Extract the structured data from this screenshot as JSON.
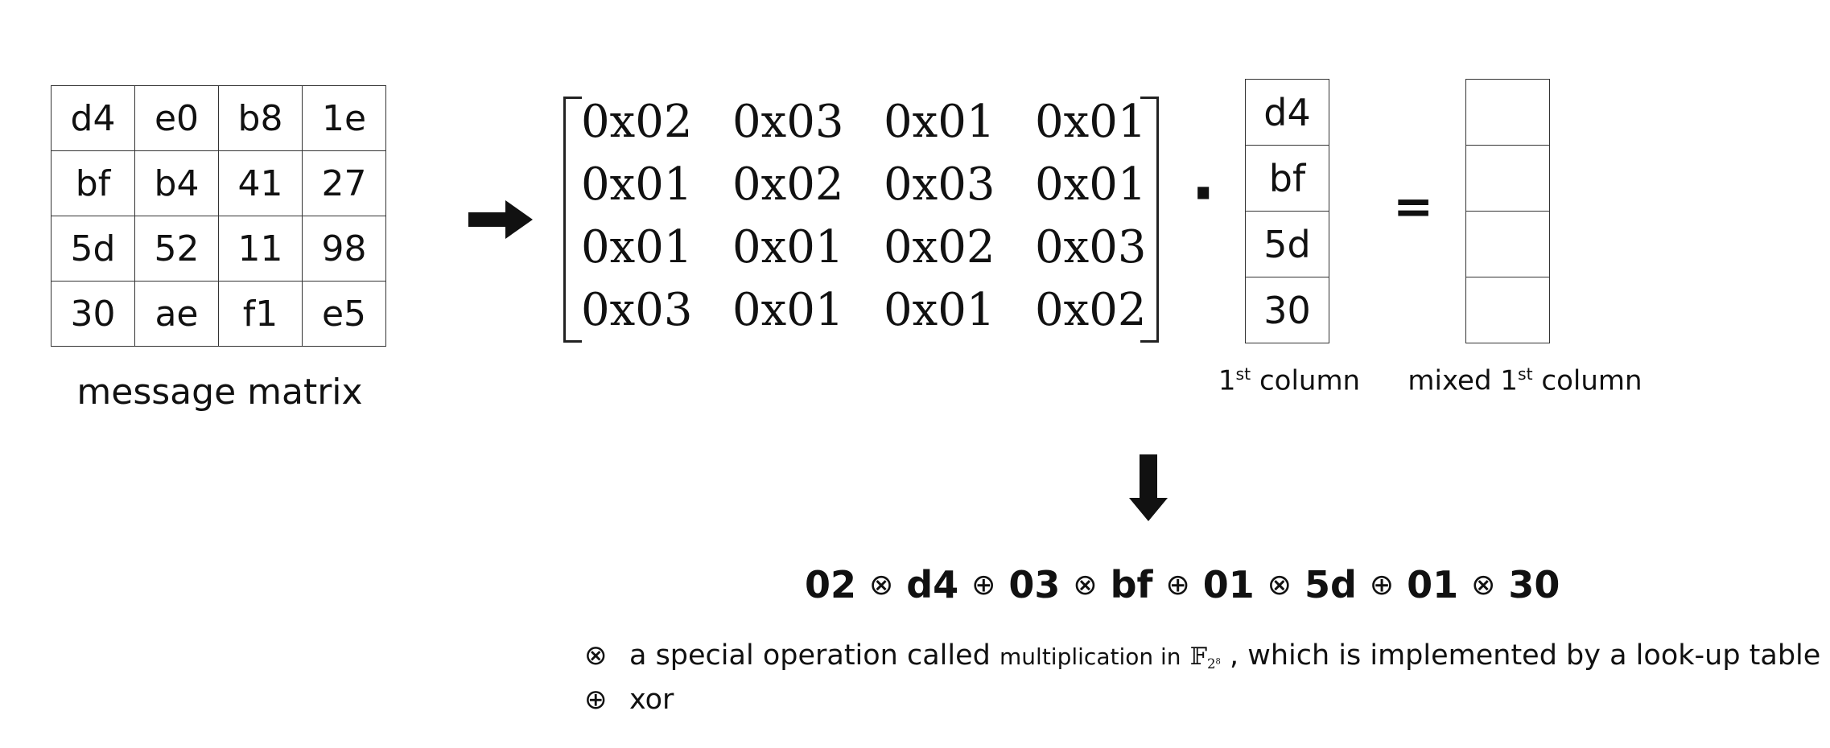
{
  "message_matrix": {
    "rows": [
      [
        "d4",
        "e0",
        "b8",
        "1e"
      ],
      [
        "bf",
        "b4",
        "41",
        "27"
      ],
      [
        "5d",
        "52",
        "11",
        "98"
      ],
      [
        "30",
        "ae",
        "f1",
        "e5"
      ]
    ],
    "label": "message matrix"
  },
  "coef_matrix": {
    "rows": [
      [
        "0x02",
        "0x03",
        "0x01",
        "0x01"
      ],
      [
        "0x01",
        "0x02",
        "0x03",
        "0x01"
      ],
      [
        "0x01",
        "0x01",
        "0x02",
        "0x03"
      ],
      [
        "0x03",
        "0x01",
        "0x01",
        "0x02"
      ]
    ]
  },
  "operators": {
    "dot": "·",
    "equals": "="
  },
  "column_vector": {
    "values": [
      "d4",
      "bf",
      "5d",
      "30"
    ],
    "label_num": "1",
    "label_sup": "st",
    "label_rest": " column"
  },
  "mixed_vector": {
    "values": [
      "",
      "",
      "",
      ""
    ],
    "label_pre": "mixed 1",
    "label_sup": "st",
    "label_rest": " column"
  },
  "formula": {
    "tokens": [
      "02",
      "⊗",
      "d4",
      "⊕",
      "03",
      "⊗",
      "bf",
      "⊕",
      "01",
      "⊗",
      "5d",
      "⊕",
      "01",
      "⊗",
      "30"
    ]
  },
  "legend": {
    "mult_symbol": "⊗",
    "mult_text_a": "a special operation called",
    "mult_text_b": "multiplication in",
    "mult_field": "𝔽",
    "mult_field_sub": "2",
    "mult_field_sup": "8",
    "mult_text_c": ", which is implemented by a look-up table",
    "xor_symbol": "⊕",
    "xor_text": "xor"
  },
  "icons": [
    "right-arrow-icon",
    "down-arrow-icon"
  ]
}
